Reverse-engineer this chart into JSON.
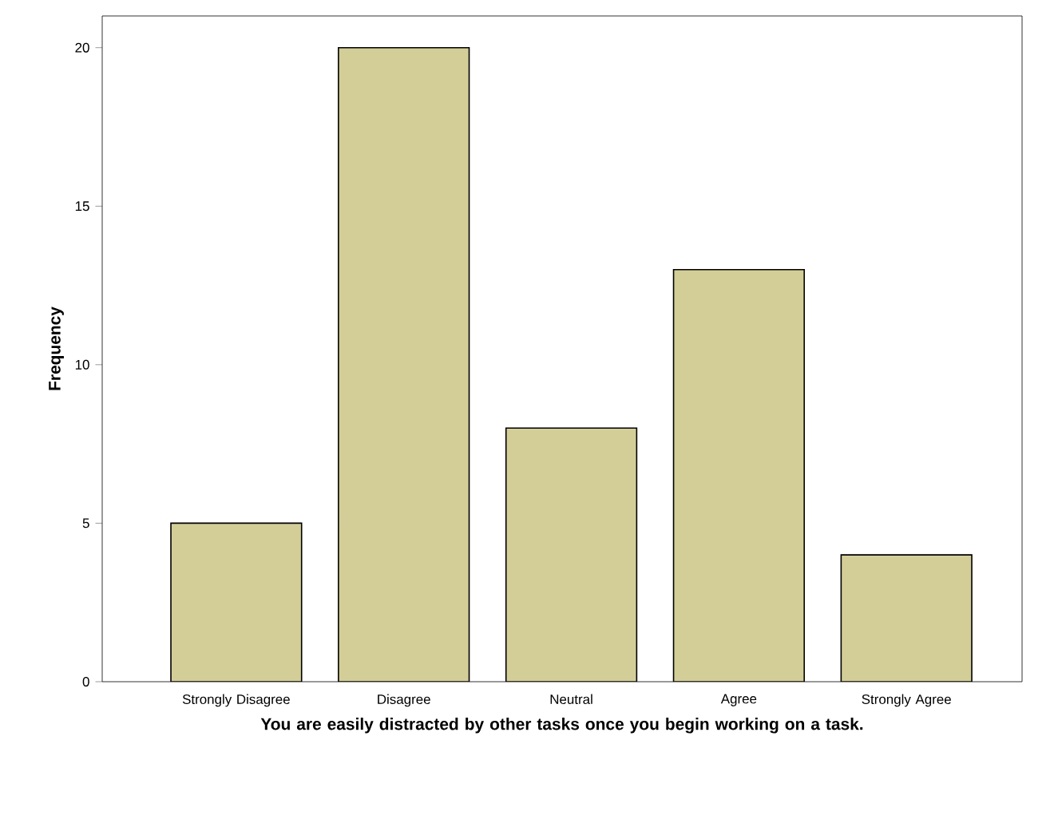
{
  "chart_data": {
    "type": "bar",
    "xlabel": "You are easily distracted by other tasks once you begin working on a task.",
    "ylabel": "Frequency",
    "categories": [
      "Strongly Disagree",
      "Disagree",
      "Neutral",
      "Agree",
      "Strongly Agree"
    ],
    "values": [
      5,
      20,
      8,
      13,
      4
    ],
    "color": "#d3ce98",
    "ylim": [
      0,
      21
    ],
    "yticks": [
      0,
      5,
      10,
      15,
      20
    ]
  }
}
